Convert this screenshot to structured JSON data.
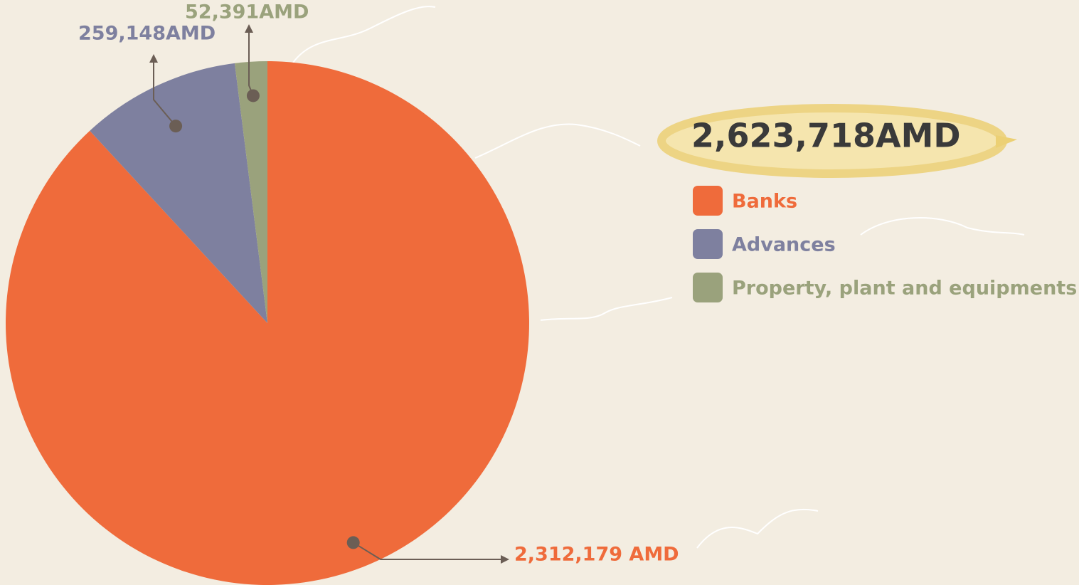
{
  "chart_data": {
    "type": "pie",
    "categories": [
      "Banks",
      "Advances",
      "Property, plant and equipments"
    ],
    "values": [
      2312179,
      259148,
      52391
    ],
    "value_labels": [
      "2,312,179 AMD",
      "259,148AMD",
      "52,391AMD"
    ],
    "colors": [
      "#ef6b3b",
      "#7e809f",
      "#9aa27c"
    ],
    "total_label": "2,623,718AMD"
  }
}
